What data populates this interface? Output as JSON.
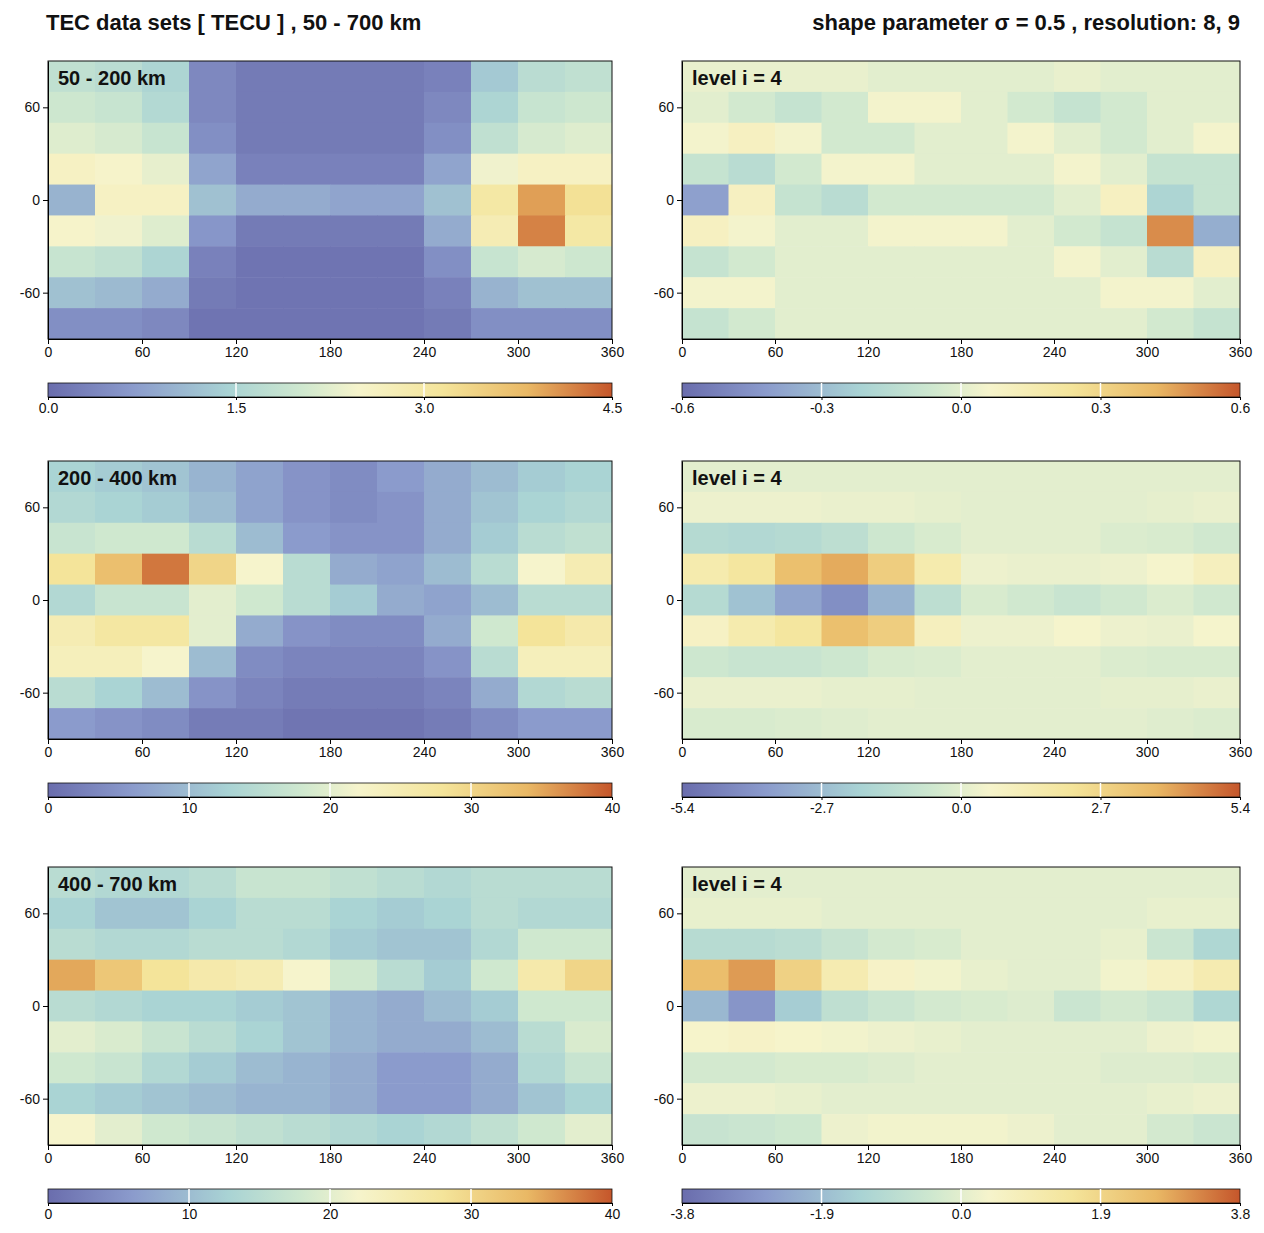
{
  "title": "TEC data sets [ TECU ] ,  50 - 700 km",
  "subtitle": "shape parameter σ = 0.5 ,  resolution: 8, 9",
  "chart_data": [
    {
      "type": "heatmap",
      "label": "50 - 200 km",
      "x": [
        15,
        45,
        75,
        105,
        135,
        165,
        195,
        225,
        255,
        285,
        315,
        345
      ],
      "y": [
        80,
        60,
        40,
        20,
        0,
        -20,
        -40,
        -60,
        -80
      ],
      "xlim": [
        0,
        360
      ],
      "ylim": [
        -90,
        90
      ],
      "xticks": [
        0,
        60,
        120,
        180,
        240,
        300,
        360
      ],
      "yticks": [
        -60,
        0,
        60
      ],
      "values": [
        [
          1.8,
          1.7,
          1.5,
          0.4,
          0.2,
          0.2,
          0.2,
          0.2,
          0.3,
          1.3,
          1.7,
          1.8
        ],
        [
          2.0,
          1.9,
          1.6,
          0.4,
          0.2,
          0.2,
          0.2,
          0.2,
          0.4,
          1.5,
          1.9,
          2.0
        ],
        [
          2.2,
          2.1,
          1.9,
          0.5,
          0.2,
          0.2,
          0.2,
          0.2,
          0.5,
          1.8,
          2.1,
          2.2
        ],
        [
          2.6,
          2.5,
          2.3,
          0.8,
          0.3,
          0.3,
          0.3,
          0.3,
          0.8,
          2.4,
          2.6,
          2.6
        ],
        [
          1.0,
          2.6,
          2.6,
          1.2,
          0.9,
          0.9,
          0.8,
          0.8,
          1.2,
          3.0,
          4.0,
          3.2
        ],
        [
          2.5,
          2.4,
          2.2,
          0.6,
          0.2,
          0.2,
          0.2,
          0.2,
          0.9,
          2.8,
          4.2,
          3.0
        ],
        [
          1.9,
          1.8,
          1.5,
          0.3,
          0.1,
          0.1,
          0.1,
          0.1,
          0.5,
          1.9,
          2.1,
          2.0
        ],
        [
          1.2,
          1.1,
          0.9,
          0.2,
          0.1,
          0.1,
          0.1,
          0.1,
          0.3,
          1.0,
          1.2,
          1.2
        ],
        [
          0.5,
          0.5,
          0.4,
          0.1,
          0.1,
          0.1,
          0.1,
          0.1,
          0.2,
          0.5,
          0.5,
          0.5
        ]
      ],
      "colorbar_range": [
        0,
        4.5
      ],
      "colorbar_ticks": [
        {
          "value": 0,
          "label": "0.0"
        },
        1.5,
        {
          "value": 3,
          "label": "3.0"
        },
        4.5
      ]
    },
    {
      "type": "heatmap",
      "label": "level i = 4",
      "x": [
        15,
        45,
        75,
        105,
        135,
        165,
        195,
        225,
        255,
        285,
        315,
        345
      ],
      "y": [
        80,
        60,
        40,
        20,
        0,
        -20,
        -40,
        -60,
        -80
      ],
      "xlim": [
        0,
        360
      ],
      "ylim": [
        -90,
        90
      ],
      "xticks": [
        0,
        60,
        120,
        180,
        240,
        300,
        360
      ],
      "yticks": [
        -60,
        0,
        60
      ],
      "values": [
        [
          0.02,
          0.02,
          0.02,
          0.02,
          0.0,
          0.0,
          0.0,
          0.0,
          0.02,
          0.0,
          0.0,
          0.0
        ],
        [
          0.0,
          -0.05,
          -0.1,
          -0.05,
          0.05,
          0.05,
          0.0,
          -0.05,
          -0.1,
          -0.05,
          0.0,
          0.0
        ],
        [
          0.05,
          0.1,
          0.05,
          -0.05,
          -0.05,
          0.0,
          0.0,
          0.05,
          0.0,
          -0.05,
          0.0,
          0.05
        ],
        [
          -0.1,
          -0.15,
          -0.05,
          0.05,
          0.05,
          0.0,
          0.0,
          0.0,
          0.05,
          0.0,
          -0.1,
          -0.1
        ],
        [
          -0.4,
          0.1,
          -0.1,
          -0.15,
          -0.05,
          -0.05,
          -0.05,
          -0.05,
          0.0,
          0.1,
          -0.2,
          -0.1
        ],
        [
          0.1,
          0.05,
          0.0,
          0.0,
          0.05,
          0.05,
          0.05,
          0.0,
          -0.05,
          -0.1,
          0.5,
          -0.35
        ],
        [
          -0.1,
          -0.05,
          0.0,
          0.0,
          0.0,
          0.0,
          0.0,
          0.0,
          0.05,
          0.0,
          -0.15,
          0.1
        ],
        [
          0.05,
          0.05,
          0.0,
          0.0,
          0.0,
          0.0,
          0.0,
          0.0,
          0.0,
          0.05,
          0.05,
          0.0
        ],
        [
          -0.1,
          -0.05,
          0.0,
          0.0,
          0.0,
          0.0,
          0.0,
          0.0,
          0.0,
          0.0,
          -0.05,
          -0.1
        ]
      ],
      "colorbar_range": [
        -0.6,
        0.6
      ],
      "colorbar_ticks": [
        -0.6,
        -0.3,
        {
          "value": 0,
          "label": "0.0"
        },
        0.3,
        0.6
      ]
    },
    {
      "type": "heatmap",
      "label": "200 - 400 km",
      "x": [
        15,
        45,
        75,
        105,
        135,
        165,
        195,
        225,
        255,
        285,
        315,
        345
      ],
      "y": [
        80,
        60,
        40,
        20,
        0,
        -20,
        -40,
        -60,
        -80
      ],
      "xlim": [
        0,
        360
      ],
      "ylim": [
        -90,
        90
      ],
      "xticks": [
        0,
        60,
        120,
        180,
        240,
        300,
        360
      ],
      "yticks": [
        -60,
        0,
        60
      ],
      "values": [
        [
          13,
          12,
          11,
          9,
          7,
          5,
          4,
          6,
          8,
          10,
          12,
          13
        ],
        [
          14,
          13,
          12,
          10,
          7,
          5,
          4,
          5,
          8,
          11,
          13,
          14
        ],
        [
          17,
          18,
          18,
          15,
          10,
          6,
          5,
          5,
          8,
          12,
          15,
          16
        ],
        [
          28,
          33,
          38,
          30,
          22,
          15,
          8,
          7,
          10,
          15,
          22,
          25
        ],
        [
          14,
          17,
          17,
          20,
          18,
          15,
          12,
          8,
          7,
          10,
          15,
          15
        ],
        [
          25,
          27,
          27,
          20,
          8,
          5,
          4,
          4,
          8,
          18,
          28,
          26
        ],
        [
          24,
          24,
          22,
          10,
          4,
          3,
          3,
          3,
          5,
          15,
          24,
          24
        ],
        [
          15,
          13,
          10,
          5,
          3,
          2,
          2,
          2,
          3,
          8,
          14,
          15
        ],
        [
          6,
          5,
          4,
          2,
          2,
          1,
          1,
          1,
          2,
          4,
          6,
          6
        ]
      ],
      "colorbar_range": [
        0,
        40
      ],
      "colorbar_ticks": [
        0,
        10,
        20,
        30,
        40
      ]
    },
    {
      "type": "heatmap",
      "label": "level i = 4",
      "x": [
        15,
        45,
        75,
        105,
        135,
        165,
        195,
        225,
        255,
        285,
        315,
        345
      ],
      "y": [
        80,
        60,
        40,
        20,
        0,
        -20,
        -40,
        -60,
        -80
      ],
      "xlim": [
        0,
        360
      ],
      "ylim": [
        -90,
        90
      ],
      "xticks": [
        0,
        60,
        120,
        180,
        240,
        300,
        360
      ],
      "yticks": [
        -60,
        0,
        60
      ],
      "values": [
        [
          0,
          0,
          0,
          0,
          0,
          0,
          0,
          0,
          0,
          0,
          0,
          0
        ],
        [
          0.3,
          0.3,
          0.3,
          0.2,
          0.2,
          0.1,
          0,
          0,
          0,
          0,
          0.1,
          0.2
        ],
        [
          -1.5,
          -1.6,
          -1.5,
          -1.2,
          -0.6,
          -0.3,
          0,
          0,
          0,
          -0.2,
          -0.3,
          -0.5
        ],
        [
          1.5,
          2.0,
          3.5,
          4.0,
          3.0,
          1.5,
          0.3,
          0.2,
          0.2,
          0.3,
          0.5,
          1.0
        ],
        [
          -1.5,
          -2.5,
          -3.5,
          -4.2,
          -3.0,
          -1.2,
          -0.3,
          -0.5,
          -0.8,
          -0.5,
          -0.2,
          -0.5
        ],
        [
          0.8,
          1.5,
          2.0,
          3.5,
          3.0,
          1.0,
          0.3,
          0.3,
          0.5,
          0.3,
          0.2,
          0.5
        ],
        [
          -0.6,
          -0.8,
          -0.8,
          -0.6,
          -0.3,
          -0.2,
          0,
          0,
          0,
          -0.2,
          -0.3,
          -0.3
        ],
        [
          0.2,
          0.2,
          0.2,
          0.1,
          0.1,
          0,
          0,
          0,
          0,
          0.1,
          0.1,
          0.2
        ],
        [
          -0.3,
          -0.3,
          -0.2,
          -0.1,
          0,
          0,
          0,
          0,
          0,
          0,
          -0.1,
          -0.2
        ]
      ],
      "colorbar_range": [
        -5.4,
        5.4
      ],
      "colorbar_ticks": [
        -5.4,
        -2.7,
        {
          "value": 0,
          "label": "0.0"
        },
        2.7,
        5.4
      ]
    },
    {
      "type": "heatmap",
      "label": "400 - 700 km",
      "x": [
        15,
        45,
        75,
        105,
        135,
        165,
        195,
        225,
        255,
        285,
        315,
        345
      ],
      "y": [
        80,
        60,
        40,
        20,
        0,
        -20,
        -40,
        -60,
        -80
      ],
      "xlim": [
        0,
        360
      ],
      "ylim": [
        -90,
        90
      ],
      "xticks": [
        0,
        60,
        120,
        180,
        240,
        300,
        360
      ],
      "yticks": [
        -60,
        0,
        60
      ],
      "values": [
        [
          15,
          14,
          14,
          15,
          17,
          17,
          16,
          15,
          14,
          15,
          15,
          15
        ],
        [
          13,
          11,
          11,
          13,
          15,
          15,
          13,
          12,
          13,
          15,
          14,
          14
        ],
        [
          15,
          14,
          14,
          15,
          15,
          14,
          12,
          11,
          11,
          14,
          18,
          18
        ],
        [
          35,
          32,
          28,
          26,
          25,
          22,
          18,
          15,
          12,
          18,
          26,
          30
        ],
        [
          15,
          14,
          13,
          13,
          12,
          11,
          9,
          8,
          10,
          12,
          18,
          18
        ],
        [
          20,
          19,
          17,
          15,
          13,
          11,
          9,
          8,
          8,
          10,
          15,
          19
        ],
        [
          18,
          17,
          14,
          12,
          10,
          9,
          8,
          6,
          6,
          8,
          14,
          17
        ],
        [
          13,
          12,
          11,
          10,
          9,
          9,
          8,
          6,
          6,
          8,
          11,
          13
        ],
        [
          22,
          20,
          18,
          17,
          16,
          15,
          14,
          13,
          14,
          16,
          18,
          20
        ]
      ],
      "colorbar_range": [
        0,
        40
      ],
      "colorbar_ticks": [
        0,
        10,
        20,
        30,
        40
      ]
    },
    {
      "type": "heatmap",
      "label": "level i = 4",
      "x": [
        15,
        45,
        75,
        105,
        135,
        165,
        195,
        225,
        255,
        285,
        315,
        345
      ],
      "y": [
        80,
        60,
        40,
        20,
        0,
        -20,
        -40,
        -60,
        -80
      ],
      "xlim": [
        0,
        360
      ],
      "ylim": [
        -90,
        90
      ],
      "xticks": [
        0,
        60,
        120,
        180,
        240,
        300,
        360
      ],
      "yticks": [
        -60,
        0,
        60
      ],
      "values": [
        [
          0,
          0,
          0,
          0,
          0,
          0,
          0,
          0,
          0,
          0,
          0,
          0
        ],
        [
          0.1,
          0.1,
          0.1,
          0,
          0,
          0,
          0,
          0,
          0,
          0,
          0.1,
          0.1
        ],
        [
          -1.0,
          -1.0,
          -0.9,
          -0.6,
          -0.3,
          -0.2,
          0,
          0,
          0,
          0.1,
          -0.5,
          -1.2
        ],
        [
          2.5,
          3.0,
          2.0,
          1.0,
          0.5,
          0.3,
          0.1,
          0,
          0,
          0.3,
          0.6,
          1.0
        ],
        [
          -2.0,
          -2.8,
          -1.5,
          -0.8,
          -0.5,
          -0.3,
          -0.2,
          -0.1,
          -0.5,
          -0.3,
          -0.5,
          -1.2
        ],
        [
          0.4,
          0.5,
          0.4,
          0.3,
          0.2,
          0.1,
          0,
          0,
          0,
          0,
          0.2,
          0.3
        ],
        [
          -0.3,
          -0.3,
          -0.2,
          -0.2,
          -0.1,
          0,
          0,
          0,
          0,
          -0.1,
          -0.1,
          -0.2
        ],
        [
          0.2,
          0.2,
          0.1,
          0,
          0,
          0,
          0,
          0,
          0,
          0,
          0.1,
          0.2
        ],
        [
          -0.6,
          -0.5,
          -0.4,
          0.2,
          0.3,
          0.3,
          0.3,
          0.2,
          0,
          0,
          -0.3,
          -0.5
        ]
      ],
      "colorbar_range": [
        -3.8,
        3.8
      ],
      "colorbar_ticks": [
        -3.8,
        -1.9,
        {
          "value": 0,
          "label": "0.0"
        },
        1.9,
        3.8
      ]
    }
  ]
}
